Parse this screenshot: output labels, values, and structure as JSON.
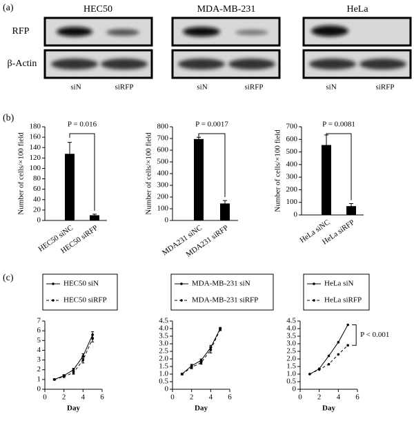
{
  "panel_labels": [
    "(a)",
    "(b)",
    "(c)"
  ],
  "blots": {
    "cell_lines": [
      "HEC50",
      "MDA-MB-231",
      "HeLa"
    ],
    "rows": [
      "RFP",
      "β-Actin"
    ],
    "lanes": [
      "siN",
      "siRFP"
    ]
  },
  "chart_data": [
    {
      "type": "bar",
      "ylabel": "Number of cells/×100 field",
      "categories": [
        "HEC50 siNC",
        "HEC50 siRFP"
      ],
      "values": [
        128,
        10
      ],
      "errors": [
        22,
        2
      ],
      "ylim": [
        0,
        180
      ],
      "yticks": [
        0,
        20,
        40,
        60,
        80,
        100,
        120,
        140,
        160,
        180
      ],
      "color": "#000000",
      "annotation": "P = 0.016"
    },
    {
      "type": "bar",
      "ylabel": "Number of cells/×100 field",
      "categories": [
        "MDA231 siNC",
        "MDA231 siRFP"
      ],
      "values": [
        695,
        145
      ],
      "errors": [
        15,
        25
      ],
      "ylim": [
        0,
        800
      ],
      "yticks": [
        0,
        100,
        200,
        300,
        400,
        500,
        600,
        700,
        800
      ],
      "color": "#000000",
      "annotation": "P = 0.0017"
    },
    {
      "type": "bar",
      "ylabel": "Number of cells/×100 field",
      "categories": [
        "HeLa siNC",
        "HeLa siRFP"
      ],
      "values": [
        555,
        70
      ],
      "errors": [
        80,
        20
      ],
      "ylim": [
        0,
        700
      ],
      "yticks": [
        0,
        100,
        200,
        300,
        400,
        500,
        600,
        700
      ],
      "color": "#000000",
      "annotation": "P = 0.0081"
    },
    {
      "type": "line",
      "xlabel": "Day",
      "x": [
        1,
        2,
        3,
        4,
        5
      ],
      "xlim": [
        0,
        6
      ],
      "xticks": [
        0,
        2,
        4,
        6
      ],
      "ylim": [
        0,
        7
      ],
      "yticks": [
        0,
        1,
        2,
        3,
        4,
        5,
        6,
        7
      ],
      "series": [
        {
          "name": "HEC50 siN",
          "color": "#000000",
          "line_style": "solid",
          "values": [
            1.0,
            1.4,
            2.0,
            3.4,
            5.6
          ],
          "errors": [
            0.05,
            0.1,
            0.15,
            0.25,
            0.3
          ]
        },
        {
          "name": "HEC50 siRFP",
          "color": "#000000",
          "line_style": "dashed",
          "values": [
            1.0,
            1.3,
            1.7,
            3.0,
            5.2
          ],
          "errors": [
            0.05,
            0.1,
            0.15,
            0.3,
            0.35
          ]
        }
      ]
    },
    {
      "type": "line",
      "xlabel": "Day",
      "x": [
        1,
        2,
        3,
        4,
        5
      ],
      "xlim": [
        0,
        6
      ],
      "xticks": [
        0,
        2,
        4,
        6
      ],
      "ylim": [
        0,
        4.5
      ],
      "yticks": [
        0,
        0.5,
        {
          "value": 1,
          "label": "1.0"
        },
        1.5,
        {
          "value": 2,
          "label": "2.0"
        },
        2.5,
        {
          "value": 3,
          "label": "3.0"
        },
        3.5,
        {
          "value": 4,
          "label": "4.0"
        },
        4.5
      ],
      "series": [
        {
          "name": "MDA-MB-231 siN",
          "color": "#000000",
          "line_style": "solid",
          "values": [
            1.0,
            1.55,
            1.9,
            2.75,
            4.0
          ],
          "errors": [
            0.05,
            0.1,
            0.1,
            0.15,
            0.08
          ]
        },
        {
          "name": "MDA-MB-231 siRFP",
          "color": "#000000",
          "line_style": "dashed",
          "values": [
            1.0,
            1.45,
            1.75,
            2.6,
            3.95
          ],
          "errors": [
            0.05,
            0.1,
            0.1,
            0.2,
            0.08
          ]
        }
      ]
    },
    {
      "type": "line",
      "xlabel": "Day",
      "x": [
        1,
        2,
        3,
        4,
        5
      ],
      "xlim": [
        0,
        6
      ],
      "xticks": [
        0,
        2,
        4,
        6
      ],
      "ylim": [
        0,
        4.5
      ],
      "yticks": [
        0,
        0.5,
        {
          "value": 1,
          "label": "1.0"
        },
        1.5,
        {
          "value": 2,
          "label": "2.0"
        },
        2.5,
        {
          "value": 3,
          "label": "3.0"
        },
        3.5,
        {
          "value": 4,
          "label": "4.0"
        },
        4.5
      ],
      "series": [
        {
          "name": "HeLa siN",
          "color": "#000000",
          "line_style": "solid",
          "values": [
            1.0,
            1.35,
            2.2,
            3.1,
            4.25
          ]
        },
        {
          "name": "HeLa siRFP",
          "color": "#000000",
          "line_style": "dashed",
          "values": [
            1.0,
            1.3,
            1.65,
            2.3,
            2.9
          ]
        }
      ],
      "annotation": "P < 0.001"
    }
  ]
}
